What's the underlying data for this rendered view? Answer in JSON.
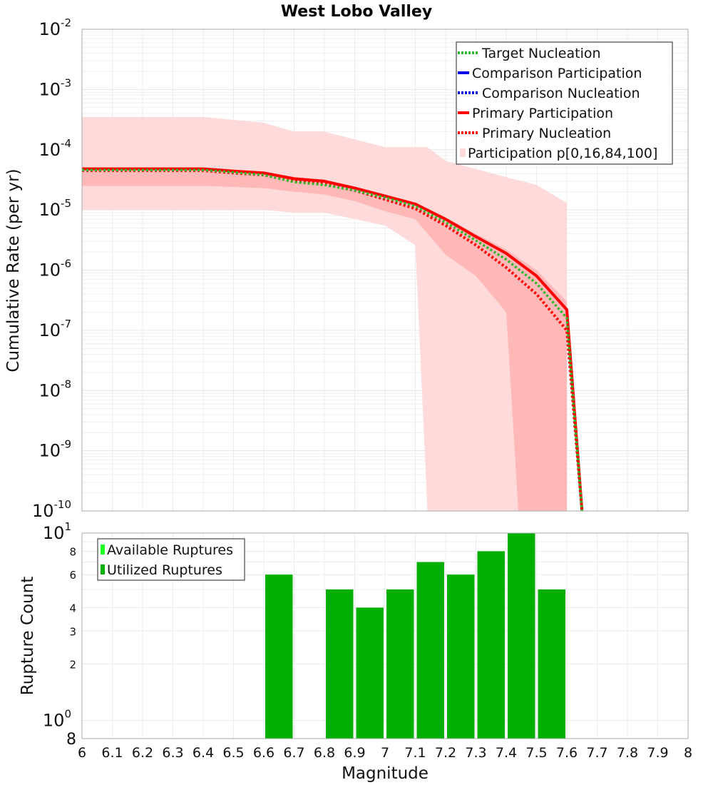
{
  "title": "West Lobo Valley",
  "colors": {
    "target": "#2eb82e",
    "comparison": "#0000e6",
    "primary": "#ff0000",
    "band_outer": "#ffdada",
    "band_inner": "#ffb8b8",
    "available": "#22ff22",
    "utilized": "#00b000",
    "grid": "#e6e6e6"
  },
  "chart_data": [
    {
      "type": "line",
      "yscale": "log",
      "xlim": [
        6,
        8
      ],
      "ylim": [
        1e-10,
        0.01
      ],
      "ylabel": "Cumulative Rate (per yr)",
      "y_ticks": [
        {
          "base": "10",
          "exp": "-2",
          "value": 0.01
        },
        {
          "base": "10",
          "exp": "-3",
          "value": 0.001
        },
        {
          "base": "10",
          "exp": "-4",
          "value": 0.0001
        },
        {
          "base": "10",
          "exp": "-5",
          "value": 1e-05
        },
        {
          "base": "10",
          "exp": "-6",
          "value": 1e-06
        },
        {
          "base": "10",
          "exp": "-7",
          "value": 1e-07
        },
        {
          "base": "10",
          "exp": "-8",
          "value": 1e-08
        },
        {
          "base": "10",
          "exp": "-9",
          "value": 1e-09
        },
        {
          "base": "10",
          "exp": "-10",
          "value": 1e-10
        }
      ],
      "legend": [
        {
          "label": "Target Nucleation",
          "style": "dotted",
          "color_key": "target"
        },
        {
          "label": "Comparison Participation",
          "style": "solid",
          "color_key": "comparison"
        },
        {
          "label": "Comparison Nucleation",
          "style": "dotted",
          "color_key": "comparison"
        },
        {
          "label": "Primary Participation",
          "style": "solid",
          "color_key": "primary"
        },
        {
          "label": "Primary Nucleation",
          "style": "dotted",
          "color_key": "primary"
        },
        {
          "label": "Participation p[0,16,84,100]",
          "style": "box",
          "color_key": "band_outer"
        }
      ],
      "series": [
        {
          "name": "Primary Participation",
          "x": [
            6.0,
            6.1,
            6.2,
            6.3,
            6.4,
            6.5,
            6.6,
            6.7,
            6.8,
            6.9,
            7.0,
            7.1,
            7.2,
            7.3,
            7.4,
            7.5,
            7.6,
            7.65
          ],
          "y": [
            4.8e-05,
            4.8e-05,
            4.8e-05,
            4.8e-05,
            4.8e-05,
            4.4e-05,
            4.1e-05,
            3.3e-05,
            3e-05,
            2.3e-05,
            1.7e-05,
            1.25e-05,
            7e-06,
            3.6e-06,
            1.9e-06,
            8e-07,
            2.2e-07,
            1e-10
          ]
        },
        {
          "name": "Primary Nucleation",
          "x": [
            6.0,
            6.1,
            6.2,
            6.3,
            6.4,
            6.5,
            6.6,
            6.7,
            6.8,
            6.9,
            7.0,
            7.1,
            7.2,
            7.3,
            7.4,
            7.5,
            7.6,
            7.65
          ],
          "y": [
            4.5e-05,
            4.5e-05,
            4.5e-05,
            4.5e-05,
            4.5e-05,
            4.1e-05,
            3.8e-05,
            3e-05,
            2.7e-05,
            2.1e-05,
            1.5e-05,
            1.05e-05,
            5.5e-06,
            2.6e-06,
            1.1e-06,
            4e-07,
            1e-07,
            1e-10
          ]
        },
        {
          "name": "Target Nucleation",
          "x": [
            6.0,
            6.1,
            6.2,
            6.3,
            6.4,
            6.5,
            6.6,
            6.7,
            6.8,
            6.9,
            7.0,
            7.1,
            7.2,
            7.3,
            7.4,
            7.5,
            7.6,
            7.65
          ],
          "y": [
            4.6e-05,
            4.6e-05,
            4.6e-05,
            4.6e-05,
            4.6e-05,
            4.2e-05,
            3.8e-05,
            2.9e-05,
            2.6e-05,
            2.1e-05,
            1.6e-05,
            1.15e-05,
            6.2e-06,
            3.1e-06,
            1.5e-06,
            6e-07,
            1.6e-07,
            1e-10
          ]
        }
      ],
      "bands": {
        "outer": {
          "x": [
            6.0,
            6.4,
            6.6,
            6.7,
            6.8,
            7.0,
            7.1,
            7.14,
            7.2,
            7.4,
            7.5,
            7.6
          ],
          "upper": [
            0.00035,
            0.00035,
            0.00028,
            0.0002,
            0.0002,
            0.00011,
            0.00011,
            0.00011,
            6.5e-05,
            3.5e-05,
            2.6e-05,
            1.3e-05
          ],
          "lower": [
            1e-05,
            1e-05,
            1e-05,
            9e-06,
            9e-06,
            5.5e-06,
            2.6e-06,
            1e-10,
            1e-10,
            1e-10,
            1e-10,
            1e-10
          ]
        },
        "inner": {
          "x": [
            6.0,
            6.4,
            6.6,
            6.7,
            6.8,
            6.9,
            7.0,
            7.1,
            7.2,
            7.3,
            7.4,
            7.44,
            7.5,
            7.6
          ],
          "upper": [
            4.8e-05,
            4.8e-05,
            4.1e-05,
            3.4e-05,
            3.1e-05,
            2.4e-05,
            1.8e-05,
            1.3e-05,
            7.5e-06,
            4e-06,
            2.2e-06,
            1.6e-06,
            1e-06,
            3e-07
          ],
          "lower": [
            2.5e-05,
            2.5e-05,
            2.3e-05,
            2e-05,
            1.8e-05,
            1.4e-05,
            9.5e-06,
            7e-06,
            1.8e-06,
            8e-07,
            2e-07,
            1e-10,
            1e-10,
            1e-10
          ]
        }
      }
    },
    {
      "type": "bar",
      "yscale": "log",
      "xlim": [
        6,
        8
      ],
      "ylim": [
        0.8,
        10
      ],
      "xlabel": "Magnitude",
      "ylabel": "Rupture Count",
      "x_ticks": [
        "6",
        "6.1",
        "6.2",
        "6.3",
        "6.4",
        "6.5",
        "6.6",
        "6.7",
        "6.8",
        "6.9",
        "7",
        "7.1",
        "7.2",
        "7.3",
        "7.4",
        "7.5",
        "7.6",
        "7.7",
        "7.8",
        "7.9",
        "8"
      ],
      "y_ticks": [
        {
          "label": "2",
          "value": 2
        },
        {
          "label": "3",
          "value": 3
        },
        {
          "label": "4",
          "value": 4
        },
        {
          "label": "6",
          "value": 6
        },
        {
          "label": "8",
          "value": 8
        }
      ],
      "y_decade_ticks": [
        {
          "base": "10",
          "exp": "1",
          "value": 10
        },
        {
          "base": "10",
          "exp": "0",
          "value": 1
        }
      ],
      "y_bottom_label": "8",
      "legend": [
        {
          "label": "Available Ruptures",
          "color_key": "available"
        },
        {
          "label": "Utilized Ruptures",
          "color_key": "utilized"
        }
      ],
      "categories": [
        6.65,
        6.85,
        6.95,
        7.05,
        7.15,
        7.25,
        7.35,
        7.45,
        7.55
      ],
      "series": [
        {
          "name": "Available Ruptures",
          "values": [
            6,
            5,
            4,
            5,
            7,
            6,
            8,
            10,
            5
          ]
        },
        {
          "name": "Utilized Ruptures",
          "values": [
            6,
            5,
            4,
            5,
            7,
            6,
            8,
            10,
            5
          ]
        }
      ]
    }
  ]
}
